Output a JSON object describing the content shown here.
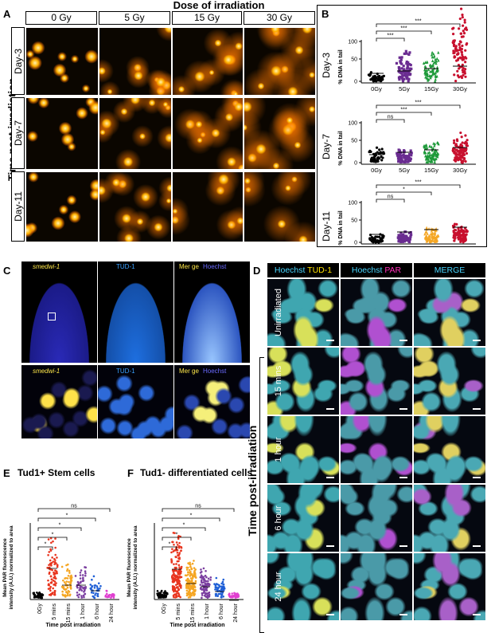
{
  "panel_a": {
    "label": "A",
    "title": "Dose of irradiation",
    "doses": [
      "0 Gy",
      "5 Gy",
      "15 Gy",
      "30 Gy"
    ],
    "days": [
      "Day-3",
      "Day-7",
      "Day-11"
    ],
    "side_label": "Time post-irradiation"
  },
  "panel_b": {
    "label": "B",
    "colors": {
      "0Gy": "#000000",
      "5Gy": "#6a2c91",
      "15Gy": "#1e9a3a",
      "30Gy": "#c8102e",
      "15Gy_day11": "#f5a623"
    },
    "charts": [
      {
        "day": "Day-3",
        "ylabel": "% DNA in tail",
        "yticks": [
          "0",
          "50",
          "100"
        ],
        "categories": [
          "0Gy",
          "5Gy",
          "15Gy",
          "30Gy"
        ],
        "sig": [
          "***",
          "***",
          "***"
        ]
      },
      {
        "day": "Day-7",
        "ylabel": "% DNA in tail",
        "yticks": [
          "0",
          "50",
          "100"
        ],
        "categories": [
          "0Gy",
          "5Gy",
          "15Gy",
          "30Gy"
        ],
        "sig": [
          "ns",
          "***",
          "***"
        ]
      },
      {
        "day": "Day-11",
        "ylabel": "% DNA in tail",
        "yticks": [
          "0",
          "50",
          "100"
        ],
        "categories": [
          "0Gy",
          "5Gy",
          "15 Gy",
          "30 Gy"
        ],
        "sig": [
          "ns",
          "*",
          "***"
        ]
      }
    ]
  },
  "panel_c": {
    "label": "C",
    "headers": [
      "smedwi-1",
      "TUD-1",
      "Mer",
      "ge",
      "Hoechst"
    ]
  },
  "panel_d": {
    "label": "D",
    "headers": [
      {
        "a": "Hoechst",
        "b": "TUD-1"
      },
      {
        "a": "Hoechst",
        "b": "PAR"
      },
      {
        "a": "MERGE",
        "b": ""
      }
    ],
    "rows": [
      "Unirradiated",
      "15 mins",
      "1 hour",
      "6 hour",
      "24 hour"
    ],
    "side_label": "Time post-irradiation"
  },
  "panel_e": {
    "label": "E",
    "title": "Tud1+ Stem cells",
    "ylabel": "Mean PAR fluorescence intensity (A.U.) normalized to area",
    "xlabel": "Time post irradiation",
    "categories": [
      "0Gy",
      "5 mins",
      "15 mins",
      "1 hour",
      "6 hour",
      "24 hour"
    ],
    "sig": [
      "*",
      "*",
      "*",
      "*",
      "ns"
    ],
    "colors": [
      "#000000",
      "#e8351e",
      "#f5a623",
      "#7b3fa0",
      "#1f5fd6",
      "#e040d0"
    ]
  },
  "panel_f": {
    "label": "F",
    "title": "Tud1- differentiated cells",
    "ylabel": "Mean PAR fluorescence intensity (A.U.) normalized to area",
    "xlabel": "Time post irradiation",
    "categories": [
      "0Gy",
      "5 mins",
      "15 mins",
      "1 hour",
      "6 hour",
      "24 hour"
    ],
    "sig": [
      "*",
      "*",
      "*",
      "*",
      "ns"
    ],
    "colors": [
      "#000000",
      "#e8351e",
      "#f5a623",
      "#7b3fa0",
      "#1f5fd6",
      "#e040d0"
    ]
  }
}
